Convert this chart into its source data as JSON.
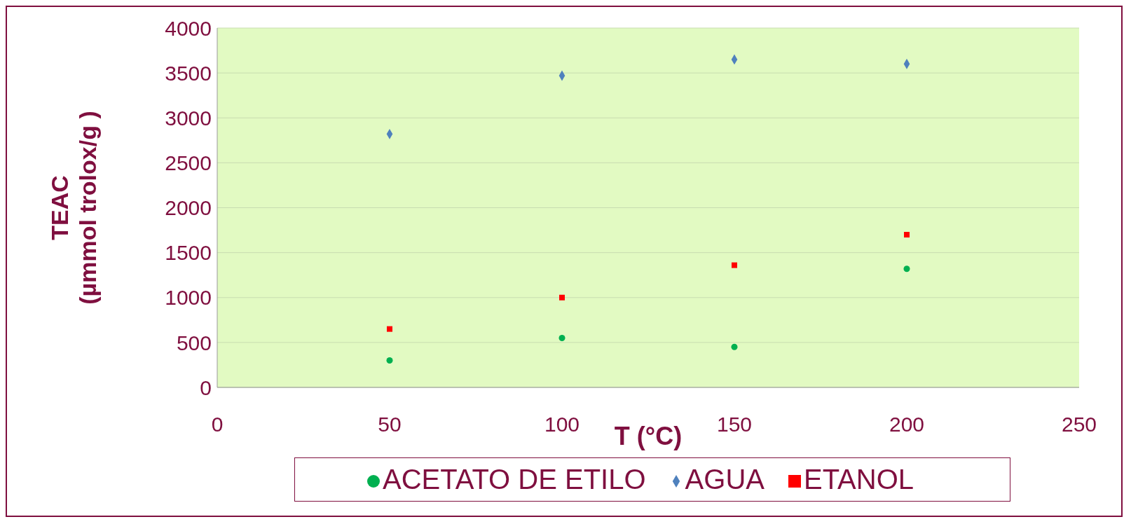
{
  "chart_data": {
    "type": "scatter",
    "xlabel": "T (°C)",
    "ylabel": "TEAC\n(µmmol trolox/g )",
    "x": [
      50,
      100,
      150,
      200
    ],
    "series": [
      {
        "name": "AGUA",
        "color": "#4f81bd",
        "marker": "diamond",
        "values": [
          2820,
          3470,
          3650,
          3600
        ]
      },
      {
        "name": "ETANOL",
        "color": "#ff0000",
        "marker": "square",
        "values": [
          650,
          1000,
          1360,
          1700
        ]
      },
      {
        "name": "ACETATO DE ETILO",
        "color": "#00b050",
        "marker": "circle",
        "values": [
          300,
          550,
          450,
          1320
        ]
      }
    ],
    "xlim": [
      0,
      250
    ],
    "xticks": [
      0,
      50,
      100,
      150,
      200,
      250
    ],
    "ylim": [
      0,
      4000
    ],
    "yticks": [
      0,
      500,
      1000,
      1500,
      2000,
      2500,
      3000,
      3500,
      4000
    ],
    "grid": "y",
    "legend": "bottom"
  }
}
